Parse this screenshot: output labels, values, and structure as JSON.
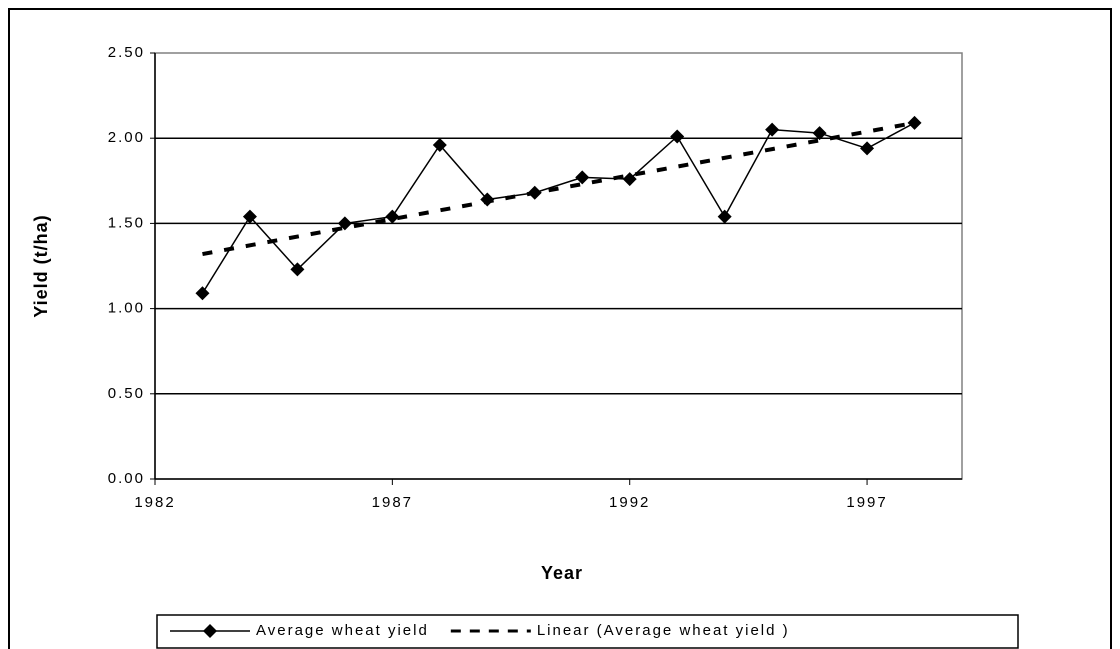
{
  "chart_data": {
    "type": "line",
    "x_label": "Year",
    "y_label": "Yield (t/ha)",
    "xlim": [
      1982,
      1999
    ],
    "xticks": [
      1982,
      1987,
      1992,
      1997
    ],
    "ylim": [
      0,
      2.5
    ],
    "yticks": [
      {
        "value": 0,
        "label": "0.00"
      },
      {
        "value": 0.5,
        "label": "0.50"
      },
      {
        "value": 1,
        "label": "1.00"
      },
      {
        "value": 1.5,
        "label": "1.50"
      },
      {
        "value": 2,
        "label": "2.00"
      },
      {
        "value": 2.5,
        "label": "2.50"
      }
    ],
    "grid": true,
    "legend": "bottom",
    "series": [
      {
        "name": "Average wheat yield",
        "color": "#000000",
        "marker": "diamond",
        "dashed": false,
        "x": [
          1983,
          1984,
          1985,
          1986,
          1987,
          1988,
          1989,
          1990,
          1991,
          1992,
          1993,
          1994,
          1995,
          1996,
          1997,
          1998
        ],
        "values": [
          1.09,
          1.54,
          1.23,
          1.5,
          1.54,
          1.96,
          1.64,
          1.68,
          1.77,
          1.76,
          2.01,
          1.54,
          2.05,
          2.03,
          1.94,
          2.09
        ]
      },
      {
        "name": "Linear (Average wheat yield )",
        "color": "#000000",
        "marker": "none",
        "dashed": true,
        "x": [
          1983,
          1998
        ],
        "values": [
          1.32,
          2.09
        ]
      }
    ]
  }
}
